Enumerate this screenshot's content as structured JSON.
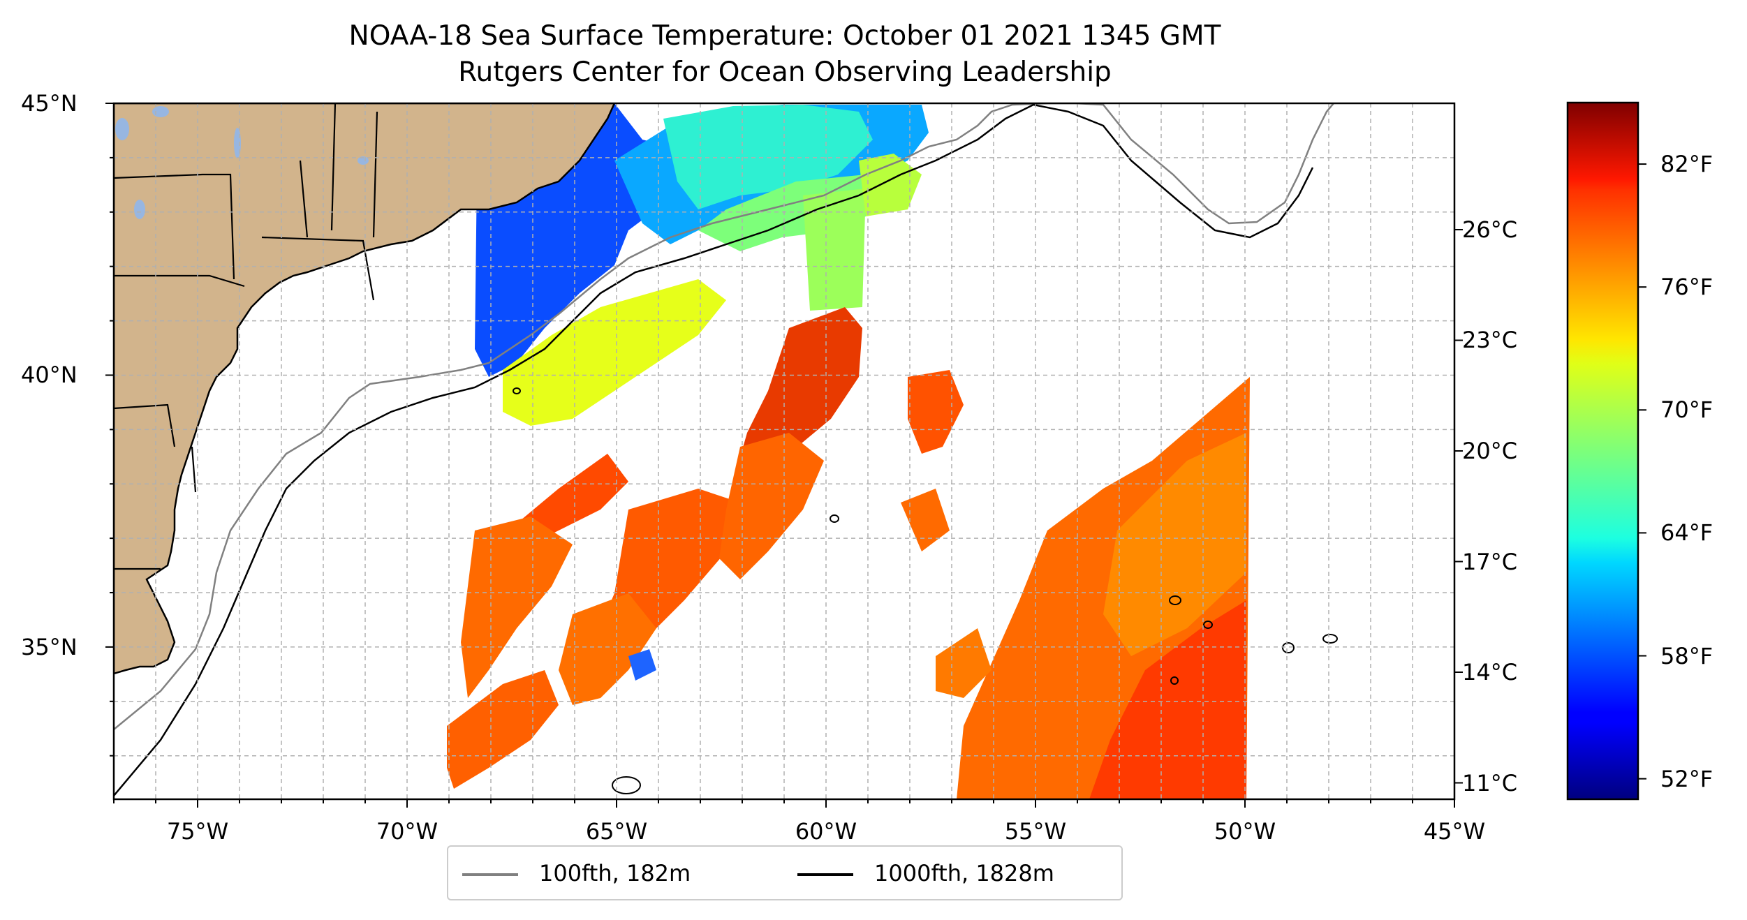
{
  "title": "NOAA-18 Sea Surface Temperature: October 01 2021 1345 GMT",
  "subtitle": "Rutgers Center for Ocean Observing Leadership",
  "map": {
    "region": "US East Coast / Northwest Atlantic",
    "lon_range": [
      -77,
      -45
    ],
    "lat_range": [
      32.2,
      45
    ],
    "lon_ticks": [
      {
        "value": -75,
        "label": "75°W"
      },
      {
        "value": -70,
        "label": "70°W"
      },
      {
        "value": -65,
        "label": "65°W"
      },
      {
        "value": -60,
        "label": "60°W"
      },
      {
        "value": -55,
        "label": "55°W"
      },
      {
        "value": -50,
        "label": "50°W"
      },
      {
        "value": -45,
        "label": "45°W"
      }
    ],
    "lat_ticks": [
      {
        "value": 45,
        "label": "45°N"
      },
      {
        "value": 40,
        "label": "40°N"
      },
      {
        "value": 35,
        "label": "35°N"
      }
    ],
    "gridlines": true,
    "land_color": "#d2b48c",
    "lake_color": "#97b6e1"
  },
  "colorbar": {
    "colormap": "jet",
    "range_f": [
      51,
      85
    ],
    "fahrenheit_ticks": [
      {
        "value": 52,
        "label": "52°F"
      },
      {
        "value": 58,
        "label": "58°F"
      },
      {
        "value": 64,
        "label": "64°F"
      },
      {
        "value": 70,
        "label": "70°F"
      },
      {
        "value": 76,
        "label": "76°F"
      },
      {
        "value": 82,
        "label": "82°F"
      }
    ],
    "celsius_ticks": [
      {
        "value": 11,
        "label": "11°C"
      },
      {
        "value": 14,
        "label": "14°C"
      },
      {
        "value": 17,
        "label": "17°C"
      },
      {
        "value": 20,
        "label": "20°C"
      },
      {
        "value": 23,
        "label": "23°C"
      },
      {
        "value": 26,
        "label": "26°C"
      }
    ]
  },
  "legend": {
    "placement": "bottom-center",
    "items": [
      {
        "label": "100fth, 182m",
        "color": "#808080"
      },
      {
        "label": "1000fth, 1828m",
        "color": "#000000"
      }
    ]
  }
}
